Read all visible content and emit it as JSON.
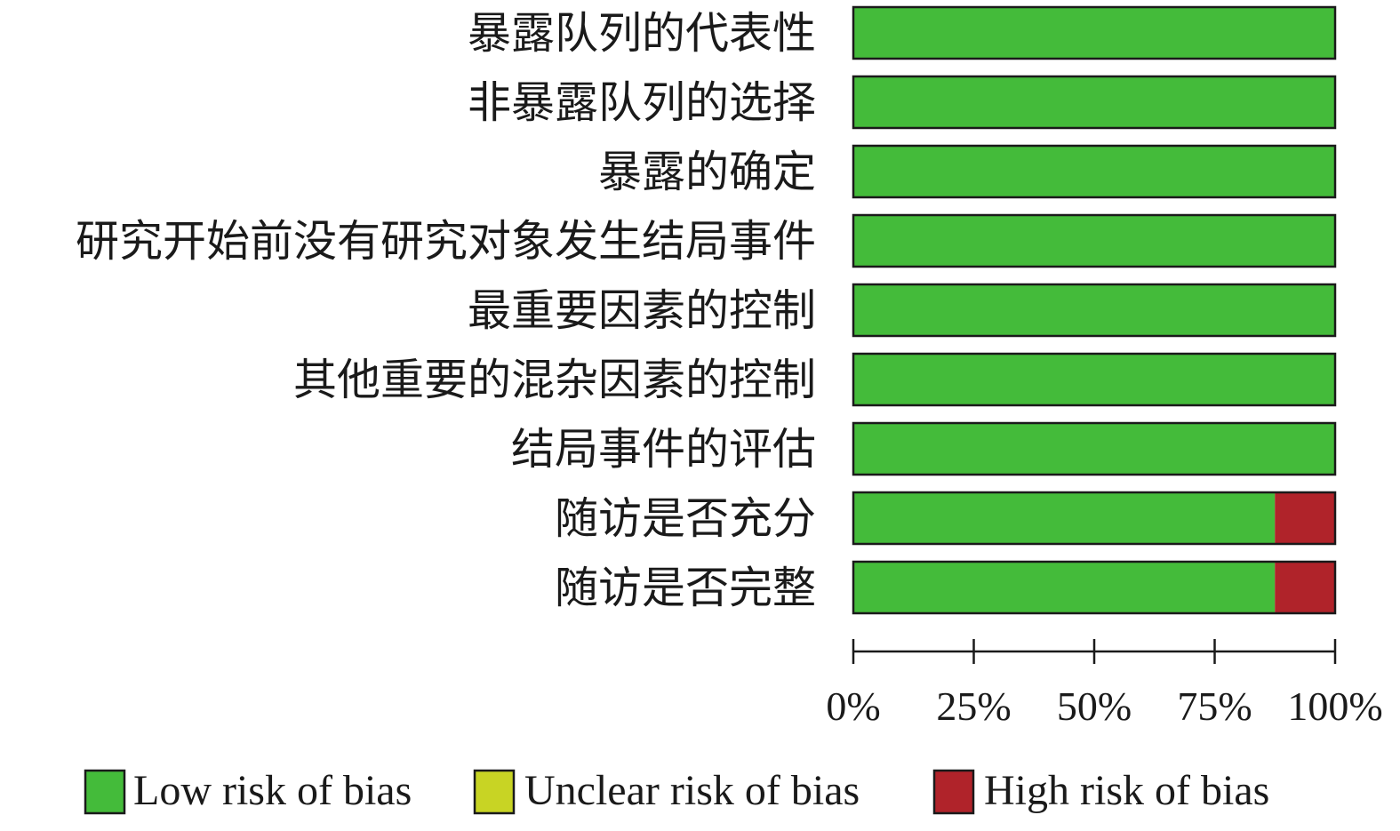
{
  "chart_data": {
    "type": "bar",
    "stacked": true,
    "orientation": "horizontal",
    "categories": [
      "暴露队列的代表性",
      "非暴露队列的选择",
      "暴露的确定",
      "研究开始前没有研究对象发生结局事件",
      "最重要因素的控制",
      "其他重要的混杂因素的控制",
      "结局事件的评估",
      "随访是否充分",
      "随访是否完整"
    ],
    "series": [
      {
        "name": "Low risk of bias",
        "color": "#44bb3a",
        "values": [
          100,
          100,
          100,
          100,
          100,
          100,
          100,
          87.5,
          87.5
        ]
      },
      {
        "name": "Unclear risk of bias",
        "color": "#c8d424",
        "values": [
          0,
          0,
          0,
          0,
          0,
          0,
          0,
          0,
          0
        ]
      },
      {
        "name": "High risk of bias",
        "color": "#b0232a",
        "values": [
          0,
          0,
          0,
          0,
          0,
          0,
          0,
          12.5,
          12.5
        ]
      }
    ],
    "xlim": [
      0,
      100
    ],
    "xticks": [
      "0%",
      "25%",
      "50%",
      "75%",
      "100%"
    ],
    "legend_position": "bottom",
    "grid": false
  }
}
